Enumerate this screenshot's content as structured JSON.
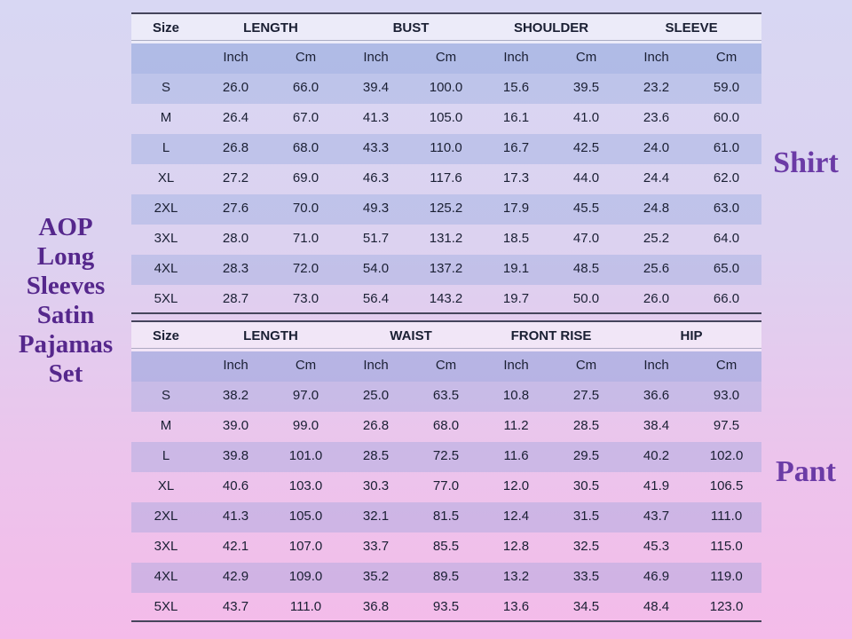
{
  "page": {
    "product_title_lines": [
      "AOP",
      "Long",
      "Sleeves",
      "Satin",
      "Pajamas",
      "Set"
    ],
    "colors": {
      "background_top": "#d8d7f3",
      "background_bottom": "#f4bbe9",
      "title_purple": "#55278c",
      "garment_label_purple": "#6b3ba6",
      "subheader_band_blue": "#b0bce7",
      "row_band_blue": "#bfc6eb",
      "table_border_dark": "#45455c",
      "table_text_dark": "#1a1f33"
    }
  },
  "tables": [
    {
      "garment": "Shirt",
      "size_header": "Size",
      "measure_headers": [
        "LENGTH",
        "BUST",
        "SHOULDER",
        "SLEEVE"
      ],
      "unit_headers": [
        "Inch",
        "Cm",
        "Inch",
        "Cm",
        "Inch",
        "Cm",
        "Inch",
        "Cm"
      ],
      "rows": [
        {
          "size": "S",
          "values": [
            "26.0",
            "66.0",
            "39.4",
            "100.0",
            "15.6",
            "39.5",
            "23.2",
            "59.0"
          ]
        },
        {
          "size": "M",
          "values": [
            "26.4",
            "67.0",
            "41.3",
            "105.0",
            "16.1",
            "41.0",
            "23.6",
            "60.0"
          ]
        },
        {
          "size": "L",
          "values": [
            "26.8",
            "68.0",
            "43.3",
            "110.0",
            "16.7",
            "42.5",
            "24.0",
            "61.0"
          ]
        },
        {
          "size": "XL",
          "values": [
            "27.2",
            "69.0",
            "46.3",
            "117.6",
            "17.3",
            "44.0",
            "24.4",
            "62.0"
          ]
        },
        {
          "size": "2XL",
          "values": [
            "27.6",
            "70.0",
            "49.3",
            "125.2",
            "17.9",
            "45.5",
            "24.8",
            "63.0"
          ]
        },
        {
          "size": "3XL",
          "values": [
            "28.0",
            "71.0",
            "51.7",
            "131.2",
            "18.5",
            "47.0",
            "25.2",
            "64.0"
          ]
        },
        {
          "size": "4XL",
          "values": [
            "28.3",
            "72.0",
            "54.0",
            "137.2",
            "19.1",
            "48.5",
            "25.6",
            "65.0"
          ]
        },
        {
          "size": "5XL",
          "values": [
            "28.7",
            "73.0",
            "56.4",
            "143.2",
            "19.7",
            "50.0",
            "26.0",
            "66.0"
          ]
        }
      ]
    },
    {
      "garment": "Pant",
      "size_header": "Size",
      "measure_headers": [
        "LENGTH",
        "WAIST",
        "FRONT RISE",
        "HIP"
      ],
      "unit_headers": [
        "Inch",
        "Cm",
        "Inch",
        "Cm",
        "Inch",
        "Cm",
        "Inch",
        "Cm"
      ],
      "rows": [
        {
          "size": "S",
          "values": [
            "38.2",
            "97.0",
            "25.0",
            "63.5",
            "10.8",
            "27.5",
            "36.6",
            "93.0"
          ]
        },
        {
          "size": "M",
          "values": [
            "39.0",
            "99.0",
            "26.8",
            "68.0",
            "11.2",
            "28.5",
            "38.4",
            "97.5"
          ]
        },
        {
          "size": "L",
          "values": [
            "39.8",
            "101.0",
            "28.5",
            "72.5",
            "11.6",
            "29.5",
            "40.2",
            "102.0"
          ]
        },
        {
          "size": "XL",
          "values": [
            "40.6",
            "103.0",
            "30.3",
            "77.0",
            "12.0",
            "30.5",
            "41.9",
            "106.5"
          ]
        },
        {
          "size": "2XL",
          "values": [
            "41.3",
            "105.0",
            "32.1",
            "81.5",
            "12.4",
            "31.5",
            "43.7",
            "111.0"
          ]
        },
        {
          "size": "3XL",
          "values": [
            "42.1",
            "107.0",
            "33.7",
            "85.5",
            "12.8",
            "32.5",
            "45.3",
            "115.0"
          ]
        },
        {
          "size": "4XL",
          "values": [
            "42.9",
            "109.0",
            "35.2",
            "89.5",
            "13.2",
            "33.5",
            "46.9",
            "119.0"
          ]
        },
        {
          "size": "5XL",
          "values": [
            "43.7",
            "111.0",
            "36.8",
            "93.5",
            "13.6",
            "34.5",
            "48.4",
            "123.0"
          ]
        }
      ]
    }
  ]
}
